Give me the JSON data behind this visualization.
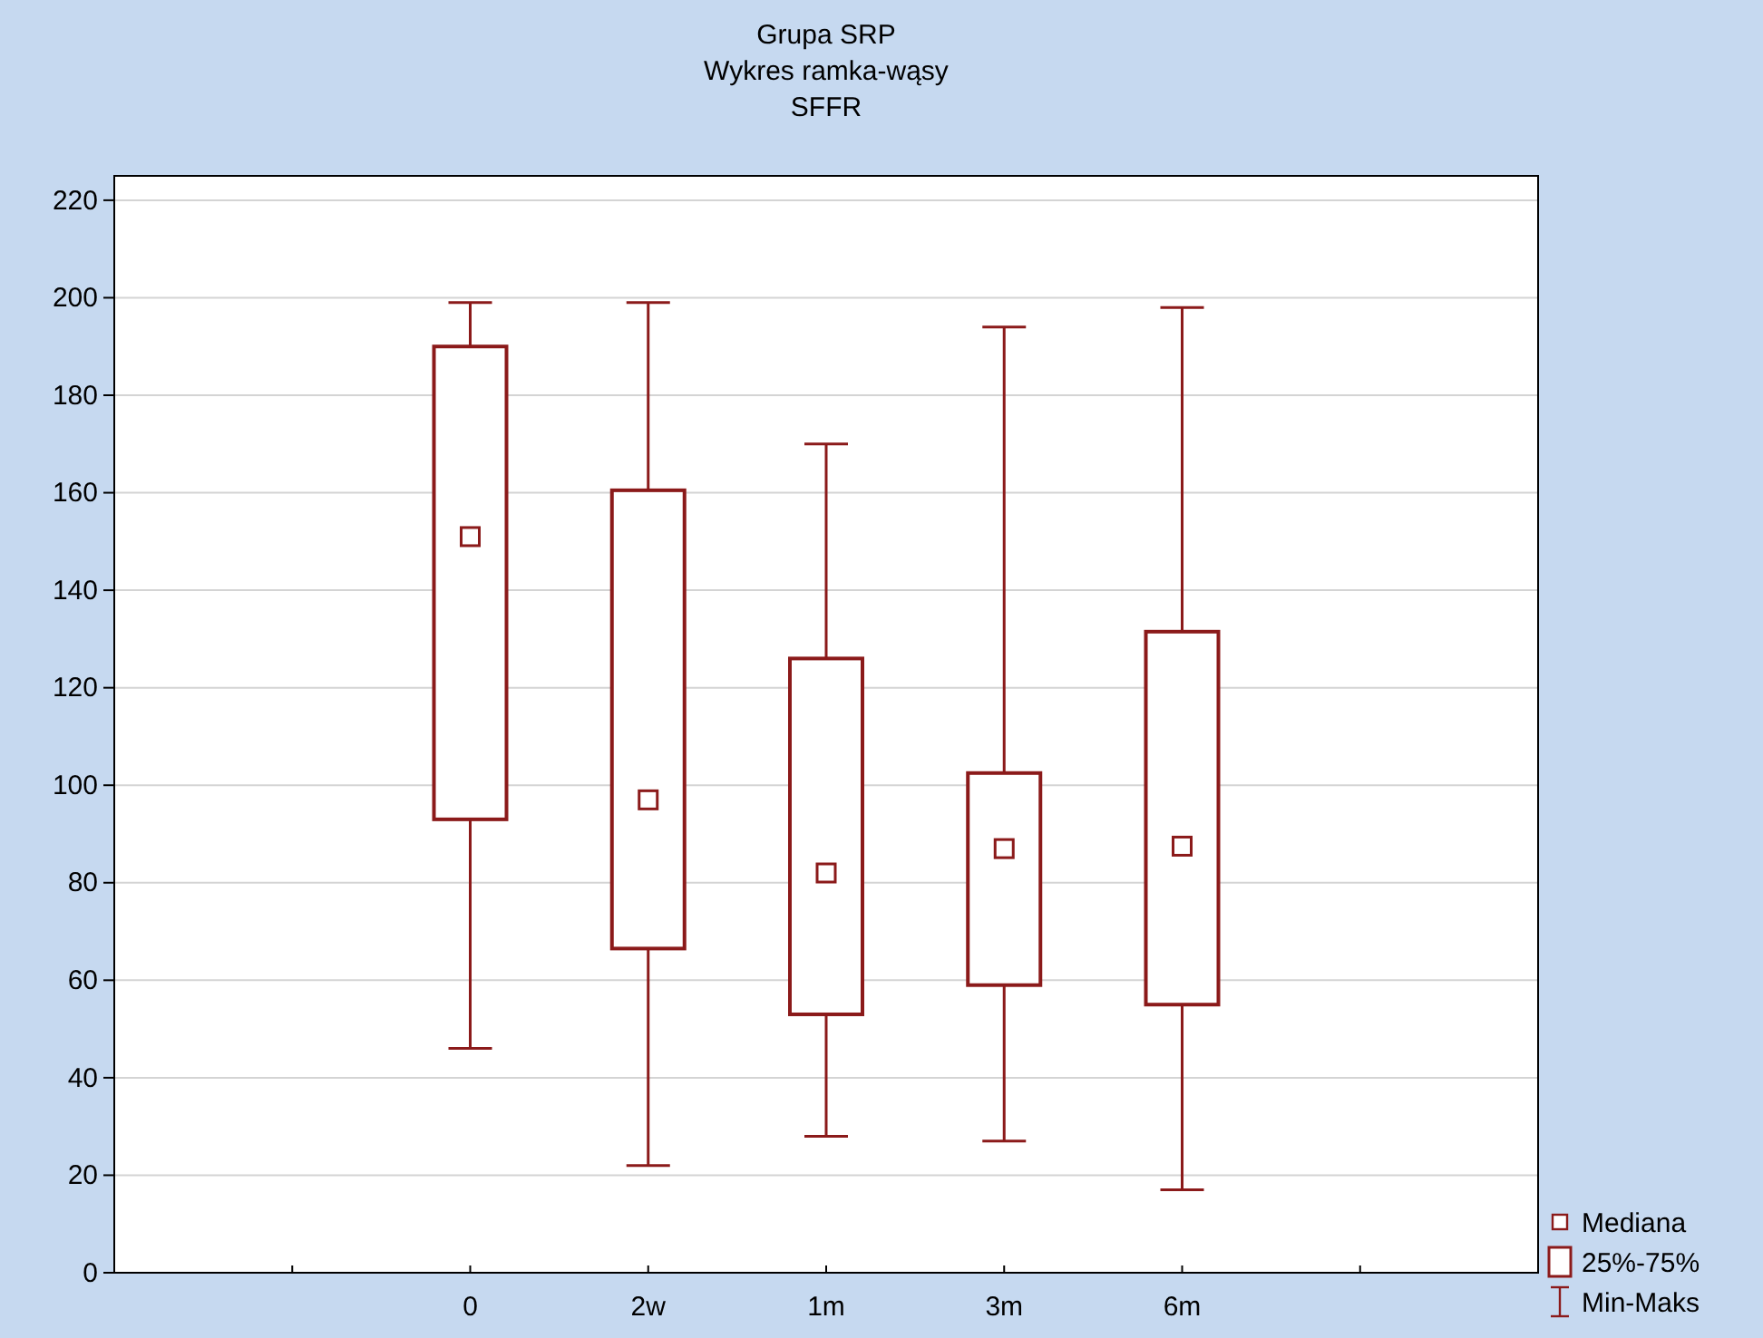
{
  "chart_data": {
    "type": "box",
    "title": "Grupa SRP",
    "subtitle": "Wykres ramka-wąsy\nSFFR",
    "categories": [
      null,
      "0",
      "2w",
      "1m",
      "3m",
      "6m",
      null
    ],
    "boxes": [
      null,
      {
        "low": 46,
        "q1": 93,
        "median": 151,
        "q3": 190,
        "high": 199
      },
      {
        "low": 22,
        "q1": 66.5,
        "median": 97,
        "q3": 160.5,
        "high": 199
      },
      {
        "low": 28,
        "q1": 53,
        "median": 82,
        "q3": 126,
        "high": 170
      },
      {
        "low": 27,
        "q1": 59,
        "median": 87,
        "q3": 102.5,
        "high": 194
      },
      {
        "low": 17,
        "q1": 55,
        "median": 87.5,
        "q3": 131.5,
        "high": 198
      },
      null
    ],
    "color": "#8b1a1a",
    "ylim": [
      0,
      225
    ],
    "yticks": [
      0,
      20,
      40,
      60,
      80,
      100,
      120,
      140,
      160,
      180,
      200,
      220
    ],
    "grid": "y",
    "annotations": [
      "Mediana",
      "25%-75%",
      "Min-Maks"
    ]
  }
}
